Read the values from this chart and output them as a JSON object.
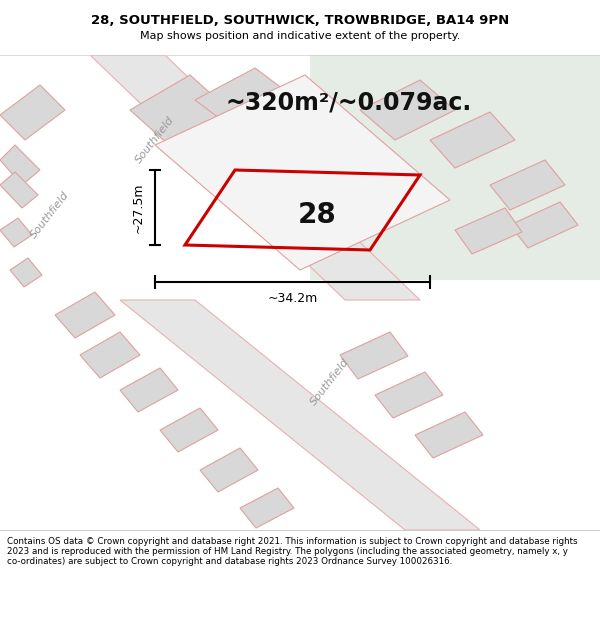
{
  "title_line1": "28, SOUTHFIELD, SOUTHWICK, TROWBRIDGE, BA14 9PN",
  "title_line2": "Map shows position and indicative extent of the property.",
  "area_text": "~320m²/~0.079ac.",
  "label_28": "28",
  "dim_height": "~27.5m",
  "dim_width": "~34.2m",
  "footer": "Contains OS data © Crown copyright and database right 2021. This information is subject to Crown copyright and database rights 2023 and is reproduced with the permission of HM Land Registry. The polygons (including the associated geometry, namely x, y co-ordinates) are subject to Crown copyright and database rights 2023 Ordnance Survey 100026316.",
  "bg_map_color": "#efefef",
  "bg_top_right_color": "#e5ebe5",
  "road_fill_color": "#e6e6e6",
  "road_stroke_color": "#e8b0b0",
  "plot_stroke_color": "#cc0000",
  "dim_line_color": "#000000",
  "title_bg": "#ffffff",
  "footer_bg": "#ffffff",
  "road_label_color": "#999999",
  "label_28_color": "#111111",
  "building_fill": "#d8d8d8",
  "building_edge": "#e0a0a0"
}
